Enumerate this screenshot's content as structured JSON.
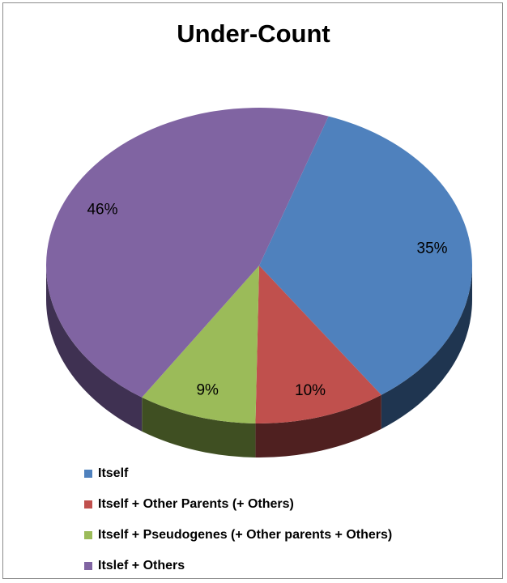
{
  "chart_data": {
    "type": "pie",
    "title": "Under-Count",
    "slices": [
      {
        "label": "Itself",
        "value": 35,
        "display": "35%",
        "color": "#4f81bd",
        "side": "#1f3550"
      },
      {
        "label": "Itself + Other Parents (+ Others)",
        "value": 10,
        "display": "10%",
        "color": "#c0504d",
        "side": "#4f2020"
      },
      {
        "label": "Itself + Pseudogenes (+ Other parents + Others)",
        "value": 9,
        "display": "9%",
        "color": "#9bbb59",
        "side": "#3f4f22"
      },
      {
        "label": "Itslef + Others",
        "value": 46,
        "display": "46%",
        "color": "#8064a2",
        "side": "#3f3152"
      }
    ],
    "legend_position": "bottom-left",
    "three_d": true
  }
}
